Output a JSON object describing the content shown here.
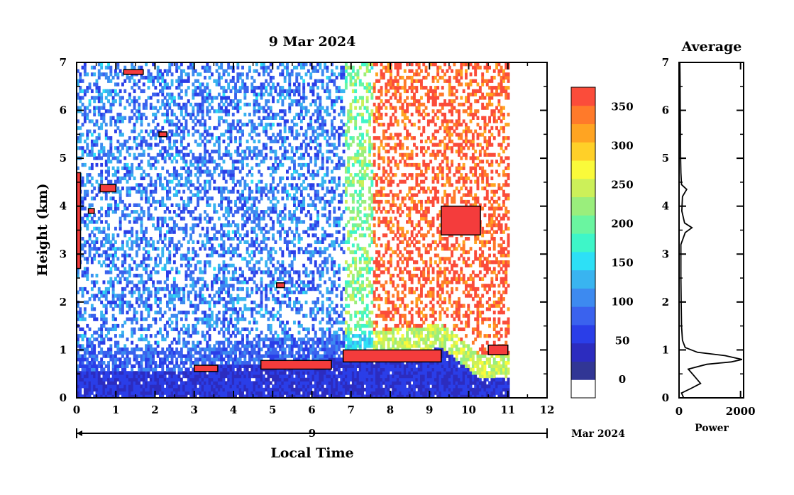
{
  "chart_data": [
    {
      "type": "heatmap",
      "title": "9 Mar 2024",
      "xlabel": "Local Time",
      "ylabel": "Height (km)",
      "xlim": [
        0,
        12
      ],
      "ylim": [
        0,
        7
      ],
      "x_ticks": [
        "0",
        "1",
        "2",
        "3",
        "4",
        "5",
        "6",
        "7",
        "8",
        "9",
        "10",
        "11",
        "12"
      ],
      "y_ticks": [
        "0",
        "1",
        "2",
        "3",
        "4",
        "5",
        "6",
        "7"
      ],
      "date_axis": {
        "day": "9",
        "month_year": "Mar 2024"
      },
      "data_end_time": 11.0,
      "background_regimes": [
        {
          "t_start": 0.0,
          "t_end": 6.8,
          "level": 110
        },
        {
          "t_start": 6.8,
          "t_end": 7.5,
          "level": 220
        },
        {
          "t_start": 7.5,
          "t_end": 11.0,
          "level": 370
        }
      ],
      "boundary_layer": [
        {
          "t": 0.0,
          "h": 0.55
        },
        {
          "t": 3.0,
          "h": 0.55
        },
        {
          "t": 3.6,
          "h": 0.65
        },
        {
          "t": 4.7,
          "h": 0.7
        },
        {
          "t": 6.0,
          "h": 0.75
        },
        {
          "t": 7.0,
          "h": 0.8
        },
        {
          "t": 8.0,
          "h": 0.9
        },
        {
          "t": 9.3,
          "h": 1.0
        },
        {
          "t": 10.2,
          "h": 0.4
        },
        {
          "t": 11.0,
          "h": 0.4
        }
      ],
      "cloud_features": [
        {
          "t_start": 0.0,
          "t_end": 0.1,
          "h_bottom": 2.7,
          "h_top": 4.7
        },
        {
          "t_start": 0.3,
          "t_end": 0.45,
          "h_bottom": 3.85,
          "h_top": 3.95
        },
        {
          "t_start": 0.6,
          "t_end": 1.0,
          "h_bottom": 4.3,
          "h_top": 4.45
        },
        {
          "t_start": 1.2,
          "t_end": 1.7,
          "h_bottom": 6.75,
          "h_top": 6.85
        },
        {
          "t_start": 2.1,
          "t_end": 2.3,
          "h_bottom": 5.45,
          "h_top": 5.55
        },
        {
          "t_start": 3.0,
          "t_end": 3.6,
          "h_bottom": 0.55,
          "h_top": 0.68
        },
        {
          "t_start": 4.7,
          "t_end": 6.5,
          "h_bottom": 0.6,
          "h_top": 0.78
        },
        {
          "t_start": 5.1,
          "t_end": 5.3,
          "h_bottom": 2.3,
          "h_top": 2.4
        },
        {
          "t_start": 6.8,
          "t_end": 9.3,
          "h_bottom": 0.75,
          "h_top": 1.0
        },
        {
          "t_start": 9.3,
          "t_end": 10.3,
          "h_bottom": 3.4,
          "h_top": 4.0
        },
        {
          "t_start": 10.5,
          "t_end": 11.0,
          "h_bottom": 0.9,
          "h_top": 1.1
        }
      ],
      "colorbar": {
        "min": 0,
        "max": 375,
        "labels": [
          "0",
          "50",
          "100",
          "150",
          "200",
          "250",
          "300",
          "350"
        ],
        "colors": [
          "#ffffff",
          "#313695",
          "#2c2cbf",
          "#2a3ee8",
          "#3a62ee",
          "#3d8af0",
          "#39b4f0",
          "#2de0f6",
          "#3ef6c8",
          "#6af5a0",
          "#9aee7c",
          "#ccf059",
          "#fafa3a",
          "#ffd028",
          "#ffa422",
          "#ff7a2a",
          "#fb4c3a"
        ]
      }
    },
    {
      "type": "line",
      "title": "Average",
      "xlabel": "Power",
      "xlim": [
        0,
        2100
      ],
      "ylim": [
        0,
        7
      ],
      "x_ticks": [
        "0",
        "2000"
      ],
      "y_ticks": [
        "0",
        "1",
        "2",
        "3",
        "4",
        "5",
        "6",
        "7"
      ],
      "series": [
        {
          "x": [
            150,
            80,
            400,
            700,
            500,
            300,
            900,
            1700,
            2050,
            1500,
            600,
            200,
            110,
            80,
            70,
            60,
            60,
            200,
            420,
            180,
            90,
            110,
            250,
            80,
            60,
            50,
            45,
            40,
            35,
            30,
            25
          ],
          "y": [
            0.0,
            0.1,
            0.2,
            0.3,
            0.45,
            0.6,
            0.7,
            0.75,
            0.8,
            0.88,
            0.95,
            1.05,
            1.2,
            1.5,
            2.0,
            2.5,
            3.2,
            3.45,
            3.55,
            3.65,
            3.9,
            4.2,
            4.35,
            4.45,
            4.7,
            5.0,
            5.5,
            6.0,
            6.5,
            6.8,
            7.0
          ]
        }
      ]
    }
  ]
}
